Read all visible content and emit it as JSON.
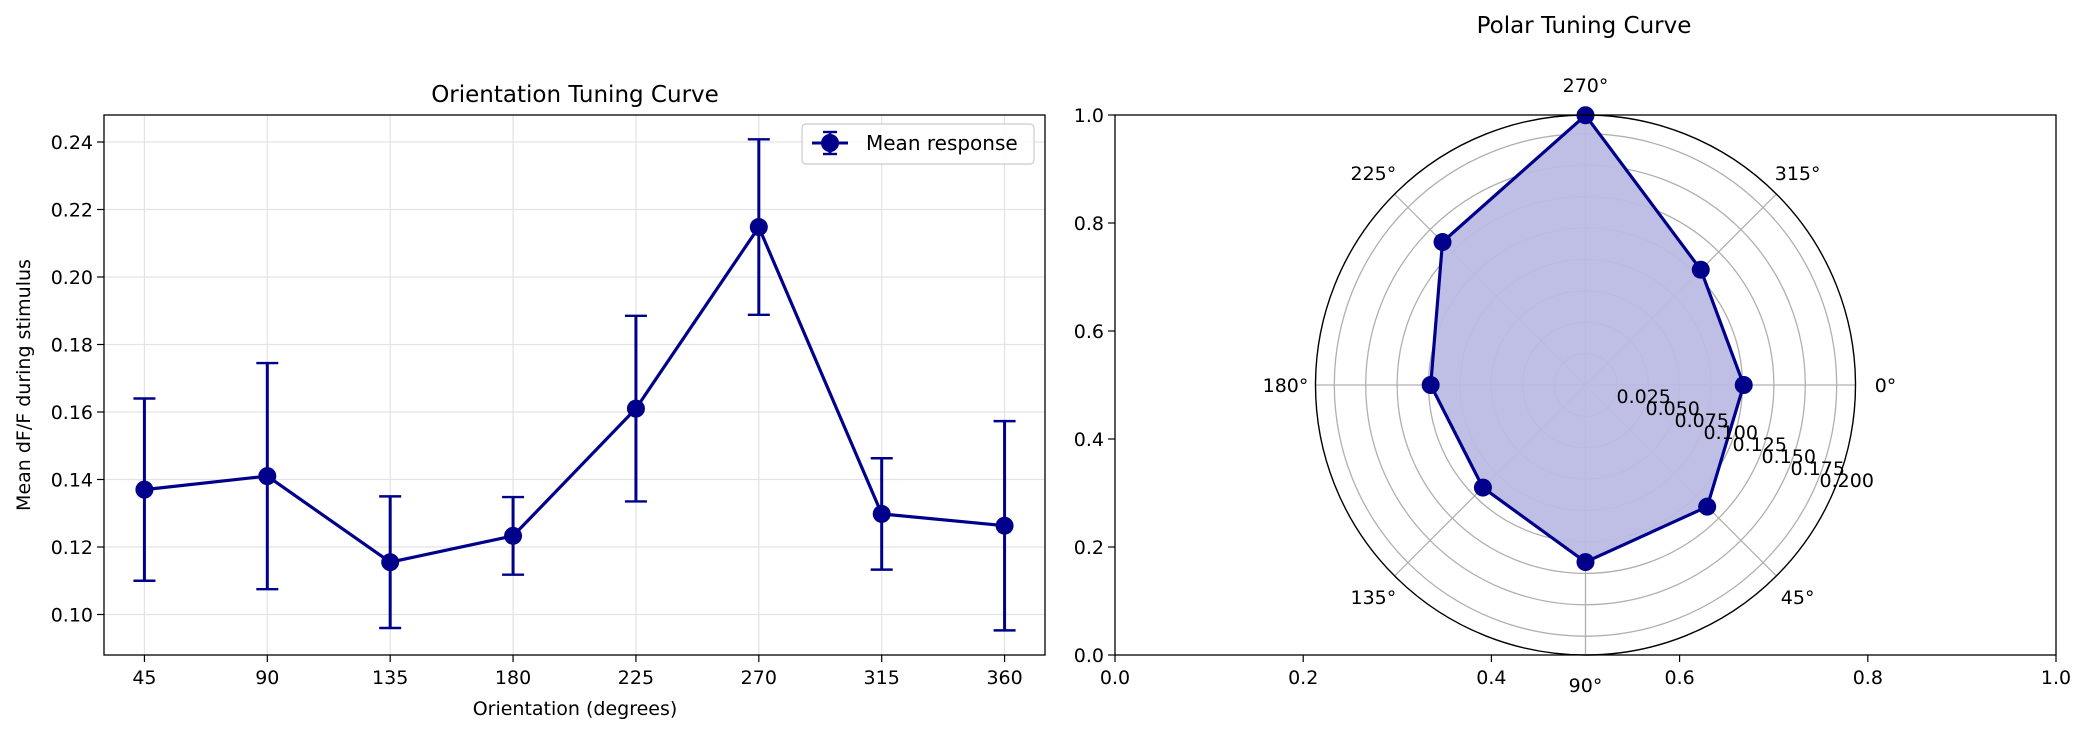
{
  "chart_data": [
    {
      "type": "line",
      "title": "Orientation Tuning Curve",
      "xlabel": "Orientation (degrees)",
      "ylabel": "Mean dF/F during stimulus",
      "x": [
        45,
        90,
        135,
        180,
        225,
        270,
        315,
        360
      ],
      "x_tick_labels": [
        "45",
        "90",
        "135",
        "180",
        "225",
        "270",
        "315",
        "360"
      ],
      "ylim": [
        0.088,
        0.248
      ],
      "y_ticks": [
        0.1,
        0.12,
        0.14,
        0.16,
        0.18,
        0.2,
        0.22,
        0.24
      ],
      "y_tick_labels": [
        "0.10",
        "0.12",
        "0.14",
        "0.16",
        "0.18",
        "0.20",
        "0.22",
        "0.24"
      ],
      "grid": true,
      "legend": "top-right",
      "series": [
        {
          "name": "Mean response",
          "values": [
            0.137,
            0.141,
            0.1155,
            0.1233,
            0.161,
            0.2148,
            0.1298,
            0.1263
          ],
          "error": [
            0.027,
            0.0335,
            0.0195,
            0.0115,
            0.0275,
            0.026,
            0.0165,
            0.031
          ],
          "color": "#00008b"
        }
      ]
    },
    {
      "type": "polar",
      "title": "Polar Tuning Curve",
      "theta_labels": [
        "0°",
        "45°",
        "90°",
        "135°",
        "180°",
        "225°",
        "270°",
        "315°"
      ],
      "radial_ticks": [
        0.025,
        0.05,
        0.075,
        0.1,
        0.125,
        0.15,
        0.175,
        0.2
      ],
      "radial_tick_labels": [
        "0.025",
        "0.050",
        "0.075",
        "0.100",
        "0.125",
        "0.150",
        "0.175",
        "0.200"
      ],
      "rmax": 0.215,
      "frame_x_ticks": [
        "0.0",
        "0.2",
        "0.4",
        "0.6",
        "0.8",
        "1.0"
      ],
      "frame_y_ticks": [
        "0.0",
        "0.2",
        "0.4",
        "0.6",
        "0.8",
        "1.0"
      ],
      "series": [
        {
          "theta": [
            0,
            45,
            90,
            135,
            180,
            225,
            270,
            315
          ],
          "values": [
            0.126,
            0.137,
            0.141,
            0.1155,
            0.1233,
            0.161,
            0.2148,
            0.1298
          ],
          "color": "#00008b",
          "fill_color": "#bcbce4"
        }
      ]
    }
  ]
}
